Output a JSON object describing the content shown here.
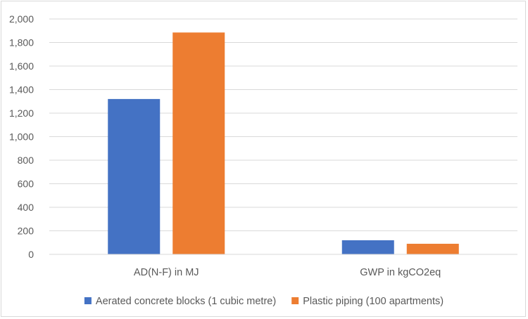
{
  "chart_data": {
    "type": "bar",
    "title": "",
    "xlabel": "",
    "ylabel": "",
    "categories": [
      "AD(N-F) in MJ",
      "GWP in kgCO2eq"
    ],
    "series": [
      {
        "name": "Aerated concrete blocks (1 cubic metre)",
        "color": "#4472c4",
        "values": [
          1320,
          120
        ]
      },
      {
        "name": "Plastic piping (100 apartments)",
        "color": "#ed7d31",
        "values": [
          1885,
          90
        ]
      }
    ],
    "ylim": [
      0,
      2000
    ],
    "yticks": [
      "0",
      "200",
      "400",
      "600",
      "800",
      "1,000",
      "1,200",
      "1,400",
      "1,600",
      "1,800",
      "2,000"
    ],
    "grid": true,
    "legend": "bottom"
  }
}
